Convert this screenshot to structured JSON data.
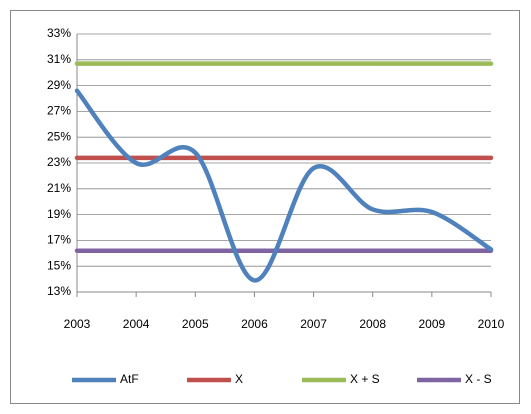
{
  "chart_data": {
    "type": "line",
    "categories": [
      "2003",
      "2004",
      "2005",
      "2006",
      "2007",
      "2008",
      "2009",
      "2010"
    ],
    "series": [
      {
        "name": "AtF",
        "color": "#4f81bd",
        "values": [
          28.6,
          23.0,
          23.8,
          13.9,
          22.6,
          19.4,
          19.2,
          16.3
        ]
      },
      {
        "name": "X",
        "color": "#c0504d",
        "values": [
          23.4,
          23.4,
          23.4,
          23.4,
          23.4,
          23.4,
          23.4,
          23.4
        ]
      },
      {
        "name": "X + S",
        "color": "#9bbb59",
        "values": [
          30.7,
          30.7,
          30.7,
          30.7,
          30.7,
          30.7,
          30.7,
          30.7
        ]
      },
      {
        "name": "X - S",
        "color": "#8064a2",
        "values": [
          16.2,
          16.2,
          16.2,
          16.2,
          16.2,
          16.2,
          16.2,
          16.2
        ]
      }
    ],
    "ylim": [
      13,
      33
    ],
    "yticks": [
      {
        "value": 13,
        "label": "13%"
      },
      {
        "value": 15,
        "label": "15%"
      },
      {
        "value": 17,
        "label": "17%"
      },
      {
        "value": 19,
        "label": "19%"
      },
      {
        "value": 21,
        "label": "21%"
      },
      {
        "value": 23,
        "label": "23%"
      },
      {
        "value": 25,
        "label": "25%"
      },
      {
        "value": 27,
        "label": "27%"
      },
      {
        "value": 29,
        "label": "29%"
      },
      {
        "value": 31,
        "label": "31%"
      },
      {
        "value": 33,
        "label": "33%"
      }
    ],
    "grid": true,
    "smooth": true,
    "legend": "bottom"
  }
}
